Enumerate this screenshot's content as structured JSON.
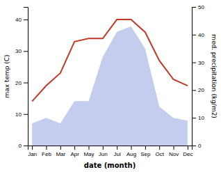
{
  "chart_data": {
    "type": "line",
    "categories": [
      "Jan",
      "Feb",
      "Mar",
      "Apr",
      "May",
      "Jun",
      "Jul",
      "Aug",
      "Sep",
      "Oct",
      "Nov",
      "Dec"
    ],
    "series": [
      {
        "type": "area",
        "axis": "y2",
        "color": "#b0bce8",
        "values": [
          8,
          10,
          8,
          16,
          16,
          32,
          41,
          43,
          35,
          14,
          10,
          9
        ]
      },
      {
        "type": "line",
        "color": "#c0392b",
        "values": [
          14,
          19,
          23,
          33,
          34,
          34,
          40,
          40,
          36,
          27,
          21,
          19
        ]
      }
    ],
    "xlabel": "date (month)",
    "ylabel": "max temp (C)",
    "y2label": "med. precipitation (kg/m2)",
    "ylim": [
      0,
      44
    ],
    "yticks": [
      0,
      10,
      20,
      30,
      40
    ],
    "y2lim": [
      0,
      50
    ],
    "y2ticks": [
      0,
      10,
      20,
      30,
      40,
      50
    ]
  }
}
